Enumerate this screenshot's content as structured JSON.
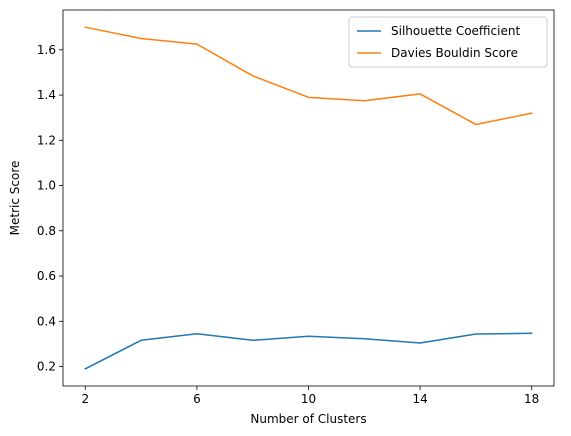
{
  "chart_data": {
    "type": "line",
    "title": "",
    "xlabel": "Number of Clusters",
    "ylabel": "Metric Score",
    "x": [
      2,
      4,
      6,
      8,
      10,
      12,
      14,
      16,
      18
    ],
    "series": [
      {
        "name": "Silhouette Coefficient",
        "color": "#1f77b4",
        "values": [
          0.19,
          0.316,
          0.345,
          0.316,
          0.334,
          0.323,
          0.304,
          0.344,
          0.347
        ]
      },
      {
        "name": "Davies Bouldin Score",
        "color": "#ff7f0e",
        "values": [
          1.7,
          1.65,
          1.625,
          1.485,
          1.39,
          1.375,
          1.405,
          1.27,
          1.32
        ]
      }
    ],
    "xticks": [
      2,
      6,
      10,
      14,
      18
    ],
    "yticks": [
      0.2,
      0.4,
      0.6,
      0.8,
      1.0,
      1.2,
      1.4,
      1.6
    ],
    "ytick_labels": [
      "0.2",
      "0.4",
      "0.6",
      "0.8",
      "1.0",
      "1.2",
      "1.4",
      "1.6"
    ],
    "xlim": [
      1.2,
      18.8
    ],
    "ylim": [
      0.114,
      1.776
    ],
    "grid": false,
    "legend_position": "top-right"
  }
}
